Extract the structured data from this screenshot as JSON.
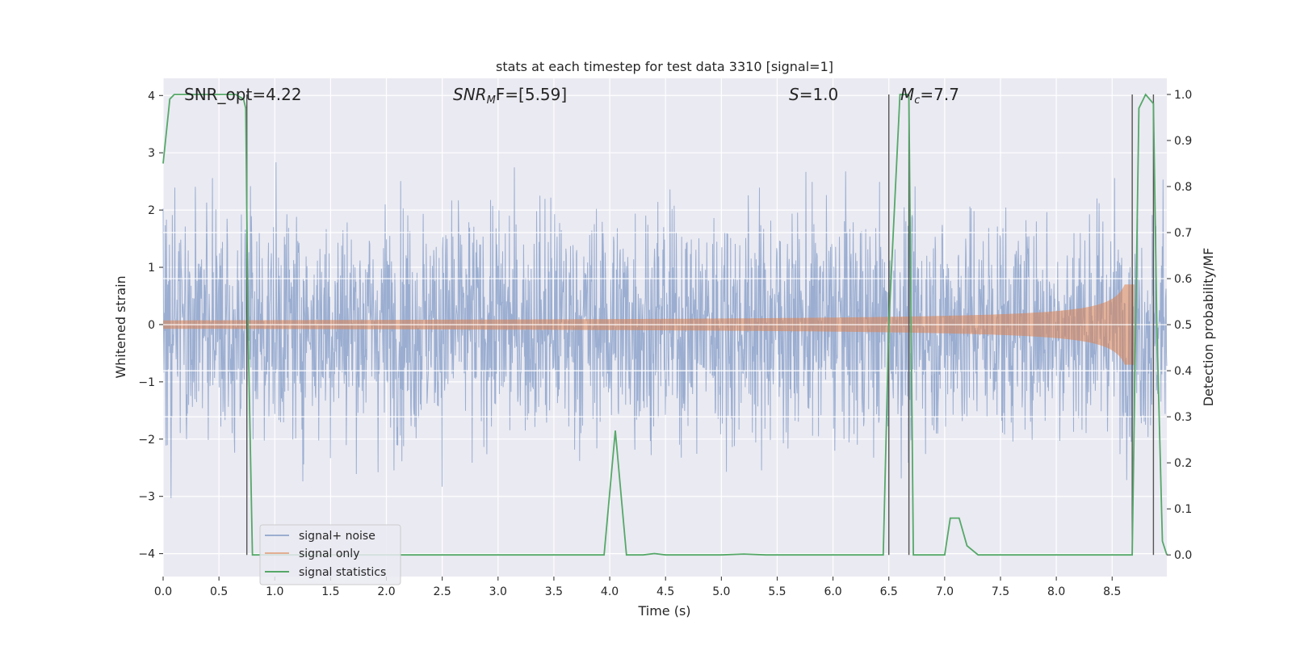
{
  "chart_data": {
    "type": "line",
    "title": "stats at each timestep for test data 3310 [signal=1]",
    "xlabel": "Time (s)",
    "ylabel": "Whitened strain",
    "ylabel_right": "Detection probability/MF",
    "xlim": [
      0.0,
      8.99
    ],
    "ylim": [
      -4.4,
      4.3
    ],
    "ylim_right": [
      -0.047,
      1.035
    ],
    "x_ticks": [
      "0.0",
      "0.5",
      "1.0",
      "1.5",
      "2.0",
      "2.5",
      "3.0",
      "3.5",
      "4.0",
      "4.5",
      "5.0",
      "5.5",
      "6.0",
      "6.5",
      "7.0",
      "7.5",
      "8.0",
      "8.5"
    ],
    "y_ticks": [
      "−4",
      "−3",
      "−2",
      "−1",
      "0",
      "1",
      "2",
      "3",
      "4"
    ],
    "y_right_ticks": [
      "0.0",
      "0.1",
      "0.2",
      "0.3",
      "0.4",
      "0.5",
      "0.6",
      "0.7",
      "0.8",
      "0.9",
      "1.0"
    ],
    "grid": true,
    "legend_position": "lower-left",
    "annotations": {
      "snr_opt": "SNR_opt=4.22",
      "snr_mf_sym": "SNR",
      "snr_mf_sub": "M",
      "snr_mf_rest": "F=[5.59]",
      "s_sym": "S",
      "s_rest": "=1.0",
      "mc_sym": "M",
      "mc_sub": "c",
      "mc_rest": "=7.7"
    },
    "series": [
      {
        "name": "signal+ noise",
        "color": "#4c72b0",
        "kind": "noise",
        "std": 1.0
      },
      {
        "name": "signal only",
        "color": "#dd8452",
        "kind": "chirp",
        "peak_time": 8.7
      },
      {
        "name": "signal statistics",
        "color": "#55a868",
        "x": [
          0.0,
          0.06,
          0.1,
          0.65,
          0.72,
          0.74,
          0.76,
          0.8,
          0.85,
          3.9,
          3.95,
          4.05,
          4.15,
          4.3,
          4.4,
          4.5,
          5.0,
          5.2,
          5.4,
          6.45,
          6.5,
          6.6,
          6.67,
          6.68,
          6.72,
          6.8,
          6.95,
          7.0,
          7.05,
          7.13,
          7.2,
          7.3,
          7.5,
          8.5,
          8.68,
          8.74,
          8.8,
          8.87,
          8.9,
          8.95,
          8.99
        ],
        "y": [
          0.85,
          0.99,
          1.0,
          1.0,
          0.99,
          0.97,
          0.5,
          0.0,
          0.0,
          0.0,
          0.0,
          0.27,
          0.0,
          0.0,
          0.003,
          0.0,
          0.0,
          0.002,
          0.0,
          0.0,
          0.5,
          1.0,
          1.0,
          0.99,
          0.0,
          0.0,
          0.0,
          0.0,
          0.08,
          0.08,
          0.02,
          0.0,
          0.0,
          0.0,
          0.0,
          0.97,
          1.0,
          0.98,
          0.5,
          0.03,
          0.0
        ]
      }
    ],
    "vlines": [
      0.75,
      6.5,
      6.68,
      8.68,
      8.87
    ],
    "hlines_right": [
      0.3,
      0.4,
      0.5,
      0.6,
      0.7
    ]
  }
}
